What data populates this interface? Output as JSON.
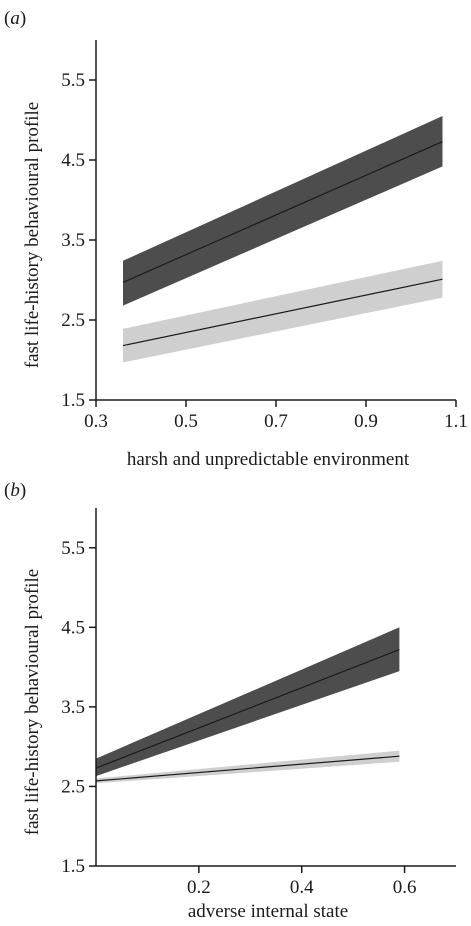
{
  "chart_data": [
    {
      "panel_label": "(a)",
      "label_open": "(",
      "label_letter": "a",
      "label_close": ")",
      "type": "line",
      "xlabel": "harsh and unpredictable environment",
      "ylabel": "fast life-history behavioural profile",
      "xlim": [
        0.3,
        1.1
      ],
      "ylim": [
        1.5,
        6.0
      ],
      "xticks": [
        "0.3",
        "0.5",
        "0.7",
        "0.9",
        "1.1"
      ],
      "xtick_values": [
        0.3,
        0.5,
        0.7,
        0.9,
        1.1
      ],
      "yticks": [
        "1.5",
        "2.5",
        "3.5",
        "4.5",
        "5.5"
      ],
      "ytick_values": [
        1.5,
        2.5,
        3.5,
        4.5,
        5.5
      ],
      "grid": false,
      "series": [
        {
          "color": "#4d4d4d",
          "x": [
            0.36,
            1.07
          ],
          "y": [
            2.97,
            4.73
          ],
          "band_lower": [
            2.68,
            4.42
          ],
          "band_upper": [
            3.24,
            5.05
          ]
        },
        {
          "color": "#cfcfcf",
          "x": [
            0.36,
            1.07
          ],
          "y": [
            2.18,
            3.01
          ],
          "band_lower": [
            1.97,
            2.78
          ],
          "band_upper": [
            2.39,
            3.24
          ]
        }
      ]
    },
    {
      "panel_label": "(b)",
      "label_open": "(",
      "label_letter": "b",
      "label_close": ")",
      "type": "line",
      "xlabel": "adverse internal state",
      "ylabel": "fast life-history behavioural profile",
      "xlim": [
        0.0,
        0.7
      ],
      "ylim": [
        1.5,
        6.0
      ],
      "xticks": [
        "0.2",
        "0.4",
        "0.6"
      ],
      "xtick_values": [
        0.2,
        0.4,
        0.6
      ],
      "yticks": [
        "1.5",
        "2.5",
        "3.5",
        "4.5",
        "5.5"
      ],
      "ytick_values": [
        1.5,
        2.5,
        3.5,
        4.5,
        5.5
      ],
      "grid": false,
      "series": [
        {
          "color": "#4d4d4d",
          "x": [
            0.0,
            0.59
          ],
          "y": [
            2.73,
            4.22
          ],
          "band_lower": [
            2.63,
            3.95
          ],
          "band_upper": [
            2.85,
            4.5
          ]
        },
        {
          "color": "#cfcfcf",
          "x": [
            0.0,
            0.59
          ],
          "y": [
            2.57,
            2.88
          ],
          "band_lower": [
            2.54,
            2.81
          ],
          "band_upper": [
            2.6,
            2.95
          ]
        }
      ]
    }
  ]
}
